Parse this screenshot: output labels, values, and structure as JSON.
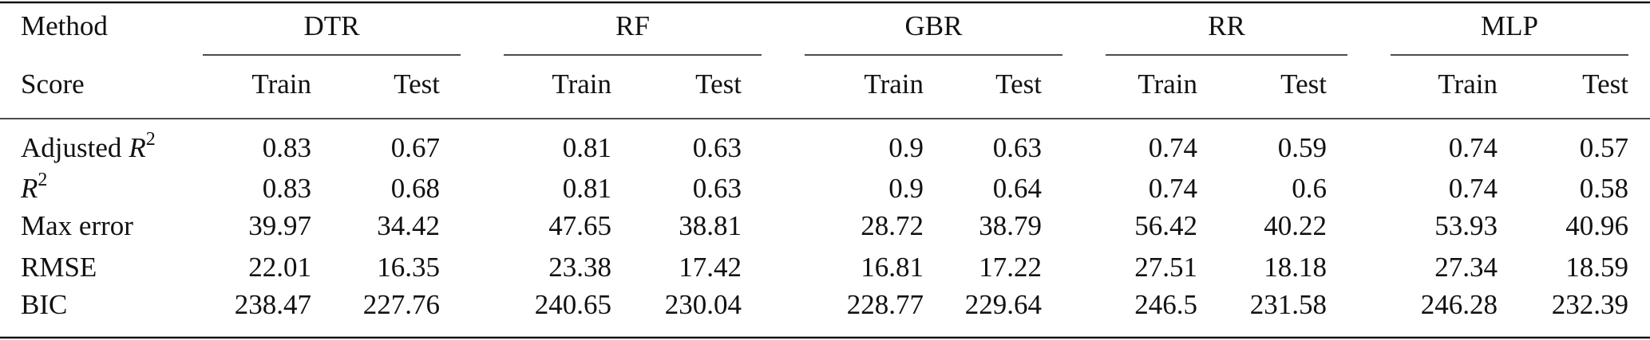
{
  "table": {
    "header": {
      "method": "Method",
      "score": "Score",
      "groups": [
        {
          "name": "DTR",
          "subcols": [
            "Train",
            "Test"
          ]
        },
        {
          "name": "RF",
          "subcols": [
            "Train",
            "Test"
          ]
        },
        {
          "name": "GBR",
          "subcols": [
            "Train",
            "Test"
          ]
        },
        {
          "name": "RR",
          "subcols": [
            "Train",
            "Test"
          ]
        },
        {
          "name": "MLP",
          "subcols": [
            "Train",
            "Test"
          ]
        }
      ]
    },
    "rows": [
      {
        "label": {
          "text": "Adjusted",
          "symbol": "R",
          "sup": "2"
        },
        "values": [
          0.83,
          0.67,
          0.81,
          0.63,
          0.9,
          0.63,
          0.74,
          0.59,
          0.74,
          0.57
        ]
      },
      {
        "label": {
          "symbol": "R",
          "sup": "2"
        },
        "values": [
          0.83,
          0.68,
          0.81,
          0.63,
          0.9,
          0.64,
          0.74,
          0.6,
          0.74,
          0.58
        ]
      },
      {
        "label": "Max error",
        "values": [
          39.97,
          34.42,
          47.65,
          38.81,
          28.72,
          38.79,
          56.42,
          40.22,
          53.93,
          40.96
        ]
      },
      {
        "label": "RMSE",
        "values": [
          22.01,
          16.35,
          23.38,
          17.42,
          16.81,
          17.22,
          27.51,
          18.18,
          27.34,
          18.59
        ]
      },
      {
        "label": "BIC",
        "values": [
          238.47,
          227.76,
          240.65,
          230.04,
          228.77,
          229.64,
          246.5,
          231.58,
          246.28,
          232.39
        ]
      }
    ]
  }
}
